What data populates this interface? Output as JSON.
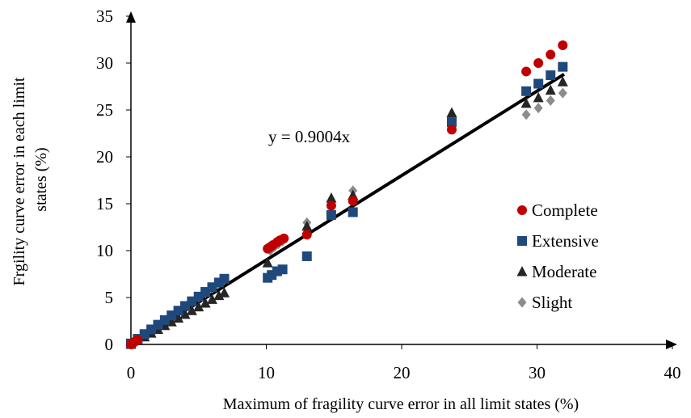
{
  "chart_data": {
    "type": "scatter",
    "title": "",
    "xlabel": "Maximum of fragility curve error in all limit states (%)",
    "ylabel_lines": [
      "Frgility curve error in each limit",
      "states (%)"
    ],
    "xlim": [
      0,
      40
    ],
    "ylim": [
      0,
      35
    ],
    "xticks": [
      "0",
      "10",
      "20",
      "30",
      "40"
    ],
    "yticks": [
      "0",
      "5",
      "10",
      "15",
      "20",
      "25",
      "30",
      "35"
    ],
    "grid": false,
    "legend_position": "right",
    "trendline": {
      "slope": 0.9004,
      "x_range": [
        0,
        32
      ],
      "label": "y = 0.9004x",
      "color": "#000000"
    },
    "series": [
      {
        "name": "Complete",
        "marker": "circle",
        "color": "#C00000",
        "x": [
          0,
          0.1,
          0.2,
          0.3,
          0.4,
          0.5,
          10.1,
          10.3,
          10.5,
          10.8,
          11.0,
          11.3,
          13.0,
          14.8,
          16.4,
          23.7,
          29.2,
          30.1,
          31.0,
          31.9
        ],
        "y": [
          0,
          0.1,
          0.2,
          0.3,
          0.4,
          0.5,
          10.2,
          10.4,
          10.6,
          10.9,
          11.1,
          11.3,
          11.7,
          14.8,
          15.3,
          22.9,
          29.1,
          30.0,
          30.9,
          31.9
        ]
      },
      {
        "name": "Extensive",
        "marker": "square",
        "color": "#1F497D",
        "x": [
          0,
          0.5,
          1.0,
          1.5,
          2.0,
          2.5,
          3.0,
          3.5,
          4.0,
          4.5,
          5.0,
          5.5,
          6.0,
          6.5,
          6.9,
          10.1,
          10.4,
          10.8,
          11.2,
          13.0,
          14.8,
          16.4,
          23.7,
          29.2,
          30.1,
          31.0,
          31.9
        ],
        "y": [
          0.1,
          0.6,
          1.1,
          1.6,
          2.1,
          2.6,
          3.1,
          3.6,
          4.1,
          4.6,
          5.1,
          5.6,
          6.1,
          6.6,
          7.0,
          7.1,
          7.4,
          7.8,
          8.0,
          9.4,
          13.8,
          14.1,
          23.7,
          27.0,
          27.8,
          28.7,
          29.6
        ]
      },
      {
        "name": "Moderate",
        "marker": "triangle",
        "color": "#262626",
        "x": [
          0,
          0.5,
          1.0,
          1.5,
          2.0,
          2.5,
          3.0,
          3.5,
          4.0,
          4.5,
          5.0,
          5.5,
          6.0,
          6.5,
          6.9,
          10.1,
          13.0,
          14.8,
          16.4,
          23.7,
          29.2,
          30.1,
          31.0,
          31.9
        ],
        "y": [
          0,
          0.4,
          0.8,
          1.2,
          1.6,
          2.0,
          2.4,
          2.8,
          3.2,
          3.6,
          4.0,
          4.4,
          4.8,
          5.2,
          5.5,
          8.7,
          12.6,
          15.6,
          15.9,
          24.7,
          25.7,
          26.3,
          27.1,
          28.0
        ]
      },
      {
        "name": "Slight",
        "marker": "diamond",
        "color": "#8C8C8C",
        "x": [
          0,
          0.5,
          1.0,
          1.5,
          2.0,
          2.5,
          3.0,
          3.5,
          4.0,
          4.5,
          5.0,
          5.5,
          6.0,
          6.5,
          6.9,
          10.3,
          10.6,
          10.9,
          11.2,
          13.0,
          14.8,
          16.4,
          23.7,
          29.2,
          30.1,
          31.0,
          31.9
        ],
        "y": [
          0,
          0.5,
          1.0,
          1.5,
          2.0,
          2.5,
          3.0,
          3.5,
          4.0,
          4.5,
          5.0,
          5.5,
          6.0,
          6.5,
          6.9,
          10.0,
          10.4,
          10.7,
          11.0,
          13.0,
          13.9,
          16.4,
          23.7,
          24.5,
          25.2,
          26.0,
          26.8
        ]
      }
    ]
  }
}
